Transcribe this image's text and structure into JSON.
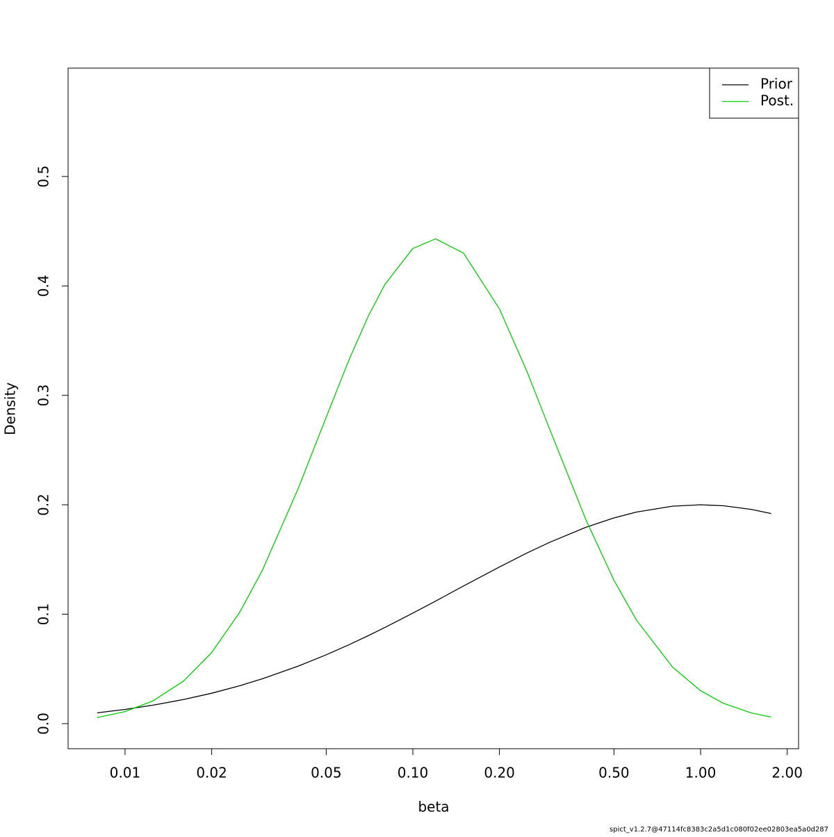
{
  "chart_data": {
    "type": "line",
    "x_label": "beta",
    "y_label": "Density",
    "footnote": "spict_v1.2.7@47114fc8383c2a5d1c080f02ee02803ea5a0d287",
    "x_log": true,
    "x": [
      0.008,
      0.01,
      0.0125,
      0.016,
      0.02,
      0.025,
      0.03,
      0.04,
      0.05,
      0.06,
      0.07,
      0.08,
      0.1,
      0.12,
      0.15,
      0.2,
      0.25,
      0.3,
      0.4,
      0.5,
      0.6,
      0.8,
      1.0,
      1.2,
      1.5,
      1.76
    ],
    "series": [
      {
        "name": "Prior",
        "color": "#000000",
        "values": [
          0.0099,
          0.013,
          0.0169,
          0.0221,
          0.0278,
          0.0346,
          0.041,
          0.0526,
          0.0629,
          0.0721,
          0.0804,
          0.0879,
          0.101,
          0.112,
          0.1258,
          0.1432,
          0.1561,
          0.1659,
          0.1795,
          0.188,
          0.1934,
          0.1987,
          0.2,
          0.1991,
          0.1958,
          0.192
        ]
      },
      {
        "name": "Post.",
        "color": "#00cd00",
        "values": [
          0.0055,
          0.011,
          0.0208,
          0.0391,
          0.065,
          0.1016,
          0.1401,
          0.2151,
          0.28,
          0.3324,
          0.3723,
          0.4014,
          0.4342,
          0.443,
          0.43,
          0.379,
          0.321,
          0.268,
          0.186,
          0.131,
          0.0942,
          0.0515,
          0.0301,
          0.0186,
          0.0098,
          0.0059
        ]
      }
    ],
    "xlim": [
      0.00634,
      2.19
    ],
    "xticks": [
      0.01,
      0.02,
      0.05,
      {
        "value": 0.1,
        "label": "0.10"
      },
      {
        "value": 0.2,
        "label": "0.20"
      },
      {
        "value": 0.5,
        "label": "0.50"
      },
      {
        "value": 1,
        "label": "1.00"
      },
      {
        "value": 2,
        "label": "2.00"
      }
    ],
    "ylim": [
      -0.0229,
      0.599
    ],
    "yticks": [
      {
        "value": 0,
        "label": "0.0"
      },
      0.1,
      0.2,
      0.3,
      0.4,
      0.5
    ],
    "legend": "top-right"
  }
}
